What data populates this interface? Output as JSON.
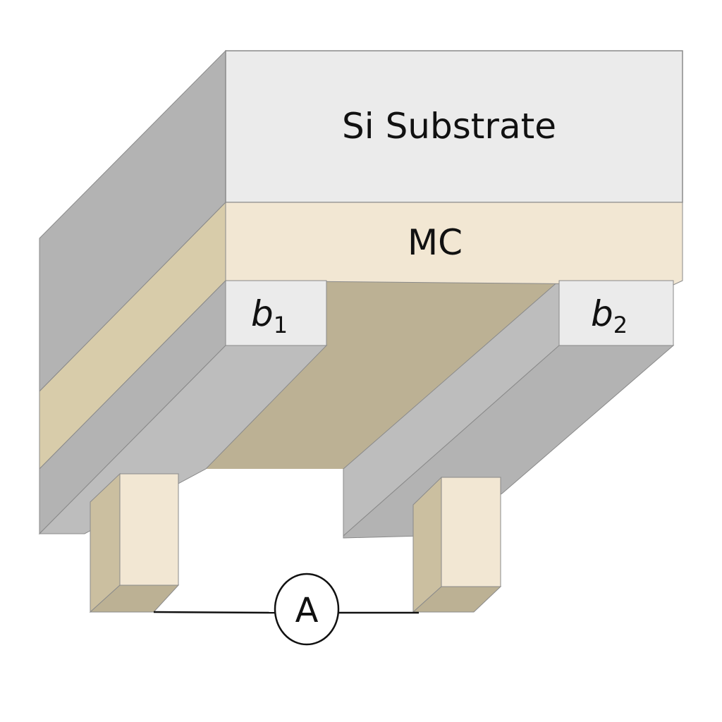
{
  "labels": {
    "substrate": "Si Substrate",
    "layer": "MC",
    "electrode1": {
      "main": "b",
      "sub": "1"
    },
    "electrode2": {
      "main": "b",
      "sub": "2"
    },
    "meter": "A"
  },
  "colors": {
    "gray_light": "#ebebeb",
    "gray_mid": "#bdbdbd",
    "gray_dark": "#b3b3b3",
    "tan_light": "#f2e7d3",
    "tan_mid": "#d8ccaa",
    "tan_dark": "#bcb194",
    "contact_side": "#cbbfa0",
    "edge": "#8a8a8a",
    "wire": "#111111"
  }
}
